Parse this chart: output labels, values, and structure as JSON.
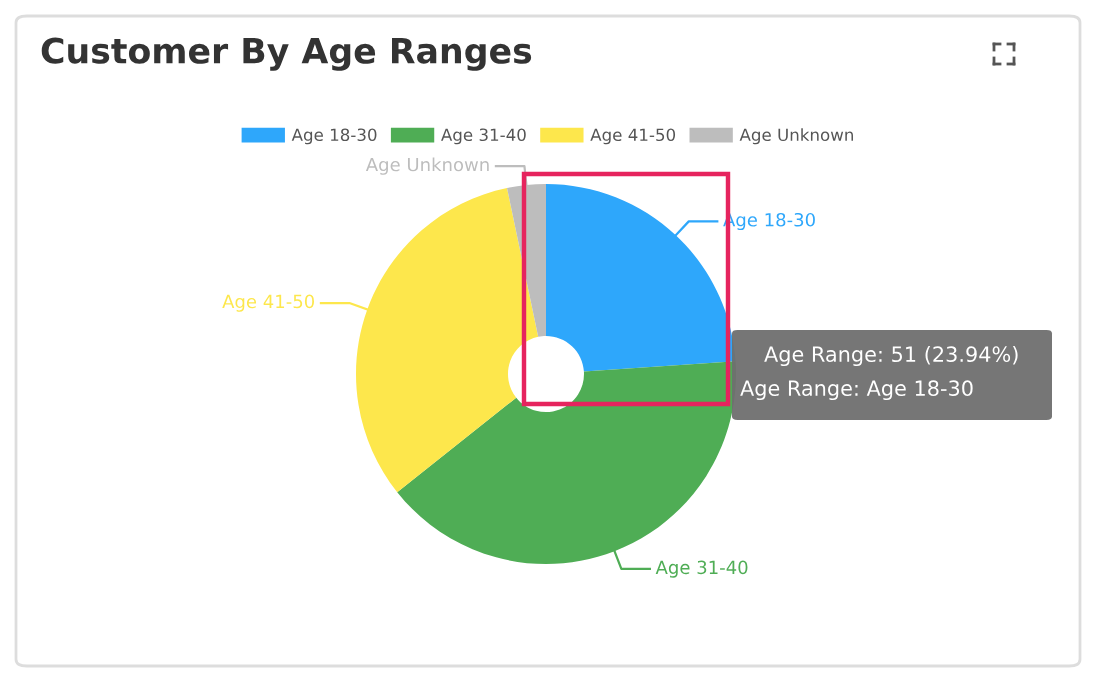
{
  "chart_data": {
    "type": "donut",
    "title": "Customer By Age Ranges",
    "categories": [
      "Age 18-30",
      "Age 31-40",
      "Age 41-50",
      "Age Unknown"
    ],
    "values": [
      23.94,
      40.38,
      32.39,
      3.29
    ],
    "colors": [
      "#2ea7fb",
      "#4fad55",
      "#fde74c",
      "#bdbdbd"
    ],
    "legend": "top",
    "annotations": [
      "Age Range: 51 (23.94%)",
      "Age Range: Age 18-30"
    ]
  }
}
